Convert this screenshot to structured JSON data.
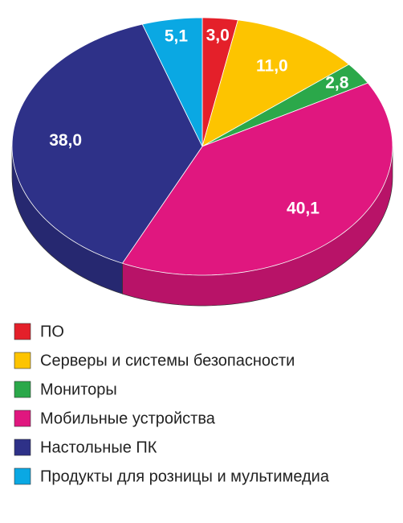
{
  "chart_data": {
    "type": "pie3d",
    "categories": [
      "ПО",
      "Серверы и системы безопасности",
      "Мониторы",
      "Мобильные устройства",
      "Настольные ПК",
      "Продукты для розницы и мультимедиа"
    ],
    "values": [
      3.0,
      11.0,
      2.8,
      40.1,
      38.0,
      5.1
    ],
    "value_labels": [
      "3,0",
      "11,0",
      "2,8",
      "40,1",
      "38,0",
      "5,1"
    ],
    "colors": [
      "#e4202a",
      "#fdc400",
      "#2ba84a",
      "#e0177f",
      "#2e3188",
      "#0aa8e3"
    ]
  }
}
